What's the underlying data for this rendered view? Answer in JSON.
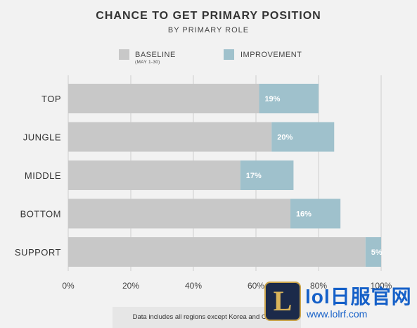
{
  "header": {
    "title": "CHANCE TO GET PRIMARY POSITION",
    "subtitle": "BY PRIMARY ROLE"
  },
  "legend": {
    "baseline_label": "BASELINE",
    "baseline_sublabel": "(MAY 1-30)",
    "improvement_label": "IMPROVEMENT"
  },
  "colors": {
    "baseline": "#c8c8c8",
    "improvement": "#9fc1cc",
    "grid": "#cfcfcf",
    "text": "#333333"
  },
  "chart_data": {
    "type": "bar",
    "orientation": "horizontal",
    "stacked": true,
    "title": "CHANCE TO GET PRIMARY POSITION",
    "subtitle": "BY PRIMARY ROLE",
    "categories": [
      "TOP",
      "JUNGLE",
      "MIDDLE",
      "BOTTOM",
      "SUPPORT"
    ],
    "series": [
      {
        "name": "BASELINE",
        "values": [
          61,
          65,
          55,
          71,
          95
        ]
      },
      {
        "name": "IMPROVEMENT",
        "values": [
          19,
          20,
          17,
          16,
          5
        ]
      }
    ],
    "data_labels": [
      "19%",
      "20%",
      "17%",
      "16%",
      "5%"
    ],
    "x_ticks": [
      "0%",
      "20%",
      "40%",
      "60%",
      "80%",
      "100%"
    ],
    "xlim": [
      0,
      100
    ],
    "grid": true,
    "legend_position": "top-center"
  },
  "footnote": "Data includes all regions except Korea and China.",
  "watermark": {
    "logo_letter": "L",
    "text": "lol日服官网",
    "url": "www.lolrf.com"
  }
}
